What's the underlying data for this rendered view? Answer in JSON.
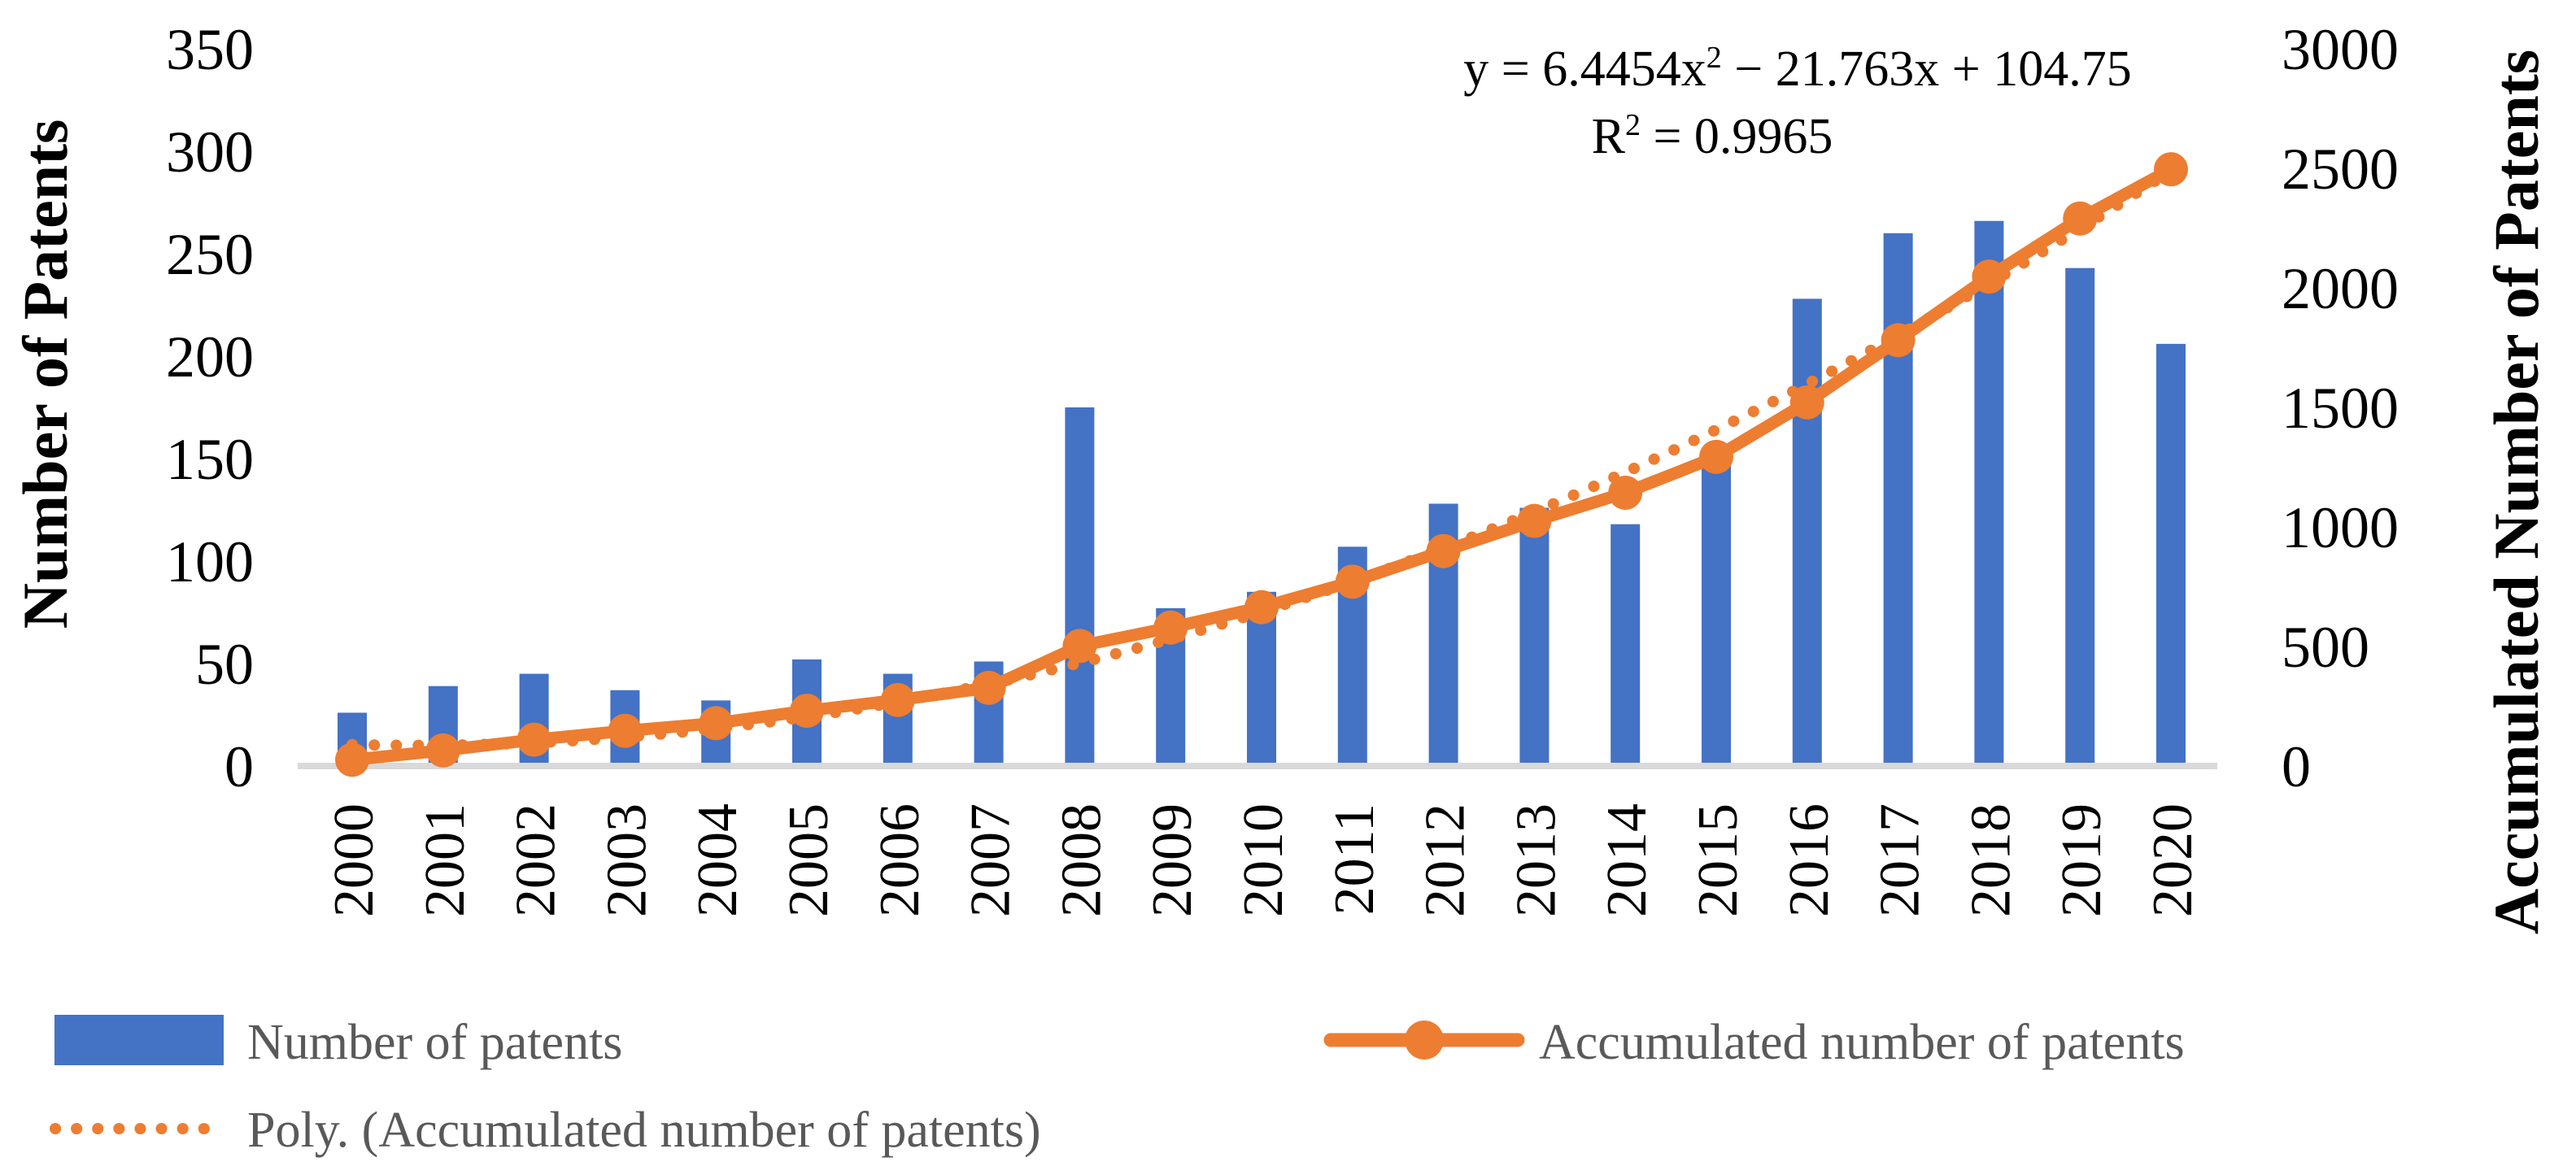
{
  "figure": {
    "background": "#FFFFFF",
    "text_color": "#000000",
    "legend_text_color": "#595959",
    "axis_line_color": "#D9D9D9"
  },
  "chart_data": {
    "type": "combo",
    "grid": false,
    "legend_position": "bottom-left",
    "categories": [
      "2000",
      "2001",
      "2002",
      "2003",
      "2004",
      "2005",
      "2006",
      "2007",
      "2008",
      "2009",
      "2010",
      "2011",
      "2012",
      "2013",
      "2014",
      "2015",
      "2016",
      "2017",
      "2018",
      "2019",
      "2020"
    ],
    "series": [
      {
        "name": "Number of patents",
        "type": "bar",
        "axis": "left",
        "color": "#4472C4",
        "values": [
          26,
          39,
          45,
          37,
          32,
          52,
          45,
          51,
          175,
          77,
          85,
          107,
          128,
          126,
          118,
          150,
          228,
          260,
          266,
          243,
          206
        ]
      },
      {
        "name": "Accumulated number of patents",
        "type": "line",
        "axis": "right",
        "color": "#ED7D31",
        "marker": "circle",
        "values": [
          26,
          65,
          110,
          147,
          179,
          231,
          276,
          327,
          502,
          579,
          664,
          771,
          899,
          1025,
          1143,
          1293,
          1521,
          1781,
          2047,
          2290,
          2496
        ]
      },
      {
        "name": "Poly. (Accumulated number of patents)",
        "type": "polynomial-trendline",
        "axis": "right",
        "color": "#ED7D31",
        "line_style": "dotted",
        "coefficients": {
          "a": 6.4454,
          "b": -21.763,
          "c": 104.75
        }
      }
    ],
    "left_axis": {
      "title": "Number of Patents",
      "min": 0,
      "max": 350,
      "tick_step": 50,
      "ticks": [
        "350",
        "300",
        "250",
        "200",
        "150",
        "100",
        "50",
        "0"
      ]
    },
    "right_axis": {
      "title": "Accumulated Number of Patents",
      "min": 0,
      "max": 3000,
      "tick_step": 500,
      "ticks": [
        "3000",
        "2500",
        "2000",
        "1500",
        "1000",
        "500",
        "0"
      ]
    },
    "annotation": {
      "equation": "y = 6.4454x² − 21.763x + 104.75",
      "r_squared": "R² = 0.9965"
    },
    "legend": [
      {
        "label": "Number of patents",
        "swatch": "bar"
      },
      {
        "label": "Accumulated number of patents",
        "swatch": "line-marker"
      },
      {
        "label": "Poly. (Accumulated number of patents)",
        "swatch": "dotted-line"
      }
    ]
  }
}
